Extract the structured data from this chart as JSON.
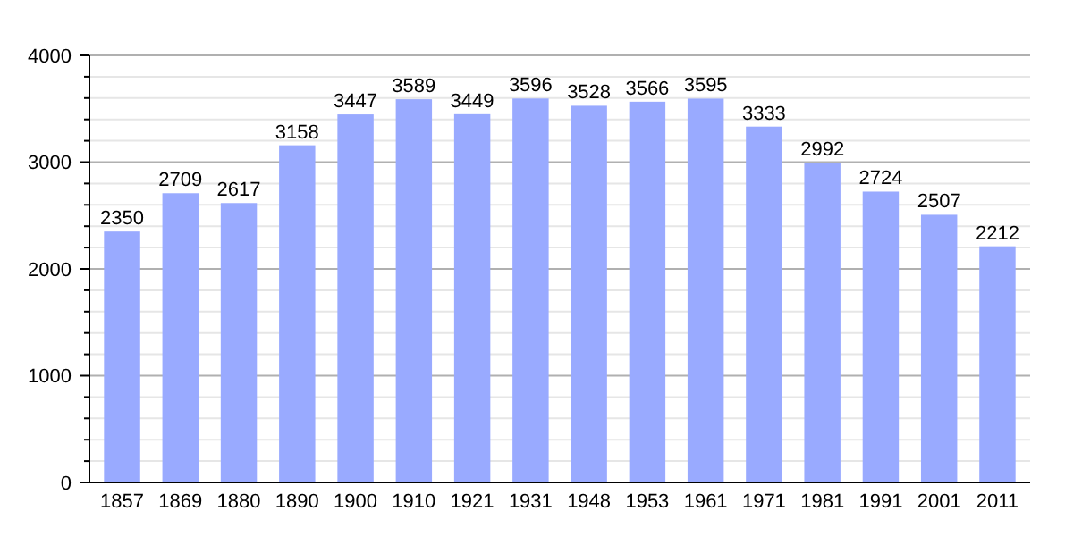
{
  "chart_data": {
    "type": "bar",
    "categories": [
      "1857",
      "1869",
      "1880",
      "1890",
      "1900",
      "1910",
      "1921",
      "1931",
      "1948",
      "1953",
      "1961",
      "1971",
      "1981",
      "1991",
      "2001",
      "2011"
    ],
    "values": [
      2350,
      2709,
      2617,
      3158,
      3447,
      3589,
      3449,
      3596,
      3528,
      3566,
      3595,
      3333,
      2992,
      2724,
      2507,
      2212
    ],
    "color": "#99aaff",
    "data_labels": true,
    "grid": "y",
    "ylim": [
      0,
      4000
    ],
    "yticks": [
      0,
      {
        "value": 200,
        "label": null
      },
      {
        "value": 400,
        "label": null
      },
      {
        "value": 600,
        "label": null
      },
      {
        "value": 800,
        "label": null
      },
      1000,
      {
        "value": 1200,
        "label": null
      },
      {
        "value": 1400,
        "label": null
      },
      {
        "value": 1600,
        "label": null
      },
      {
        "value": 1800,
        "label": null
      },
      2000,
      {
        "value": 2200,
        "label": null
      },
      {
        "value": 2400,
        "label": null
      },
      {
        "value": 2600,
        "label": null
      },
      {
        "value": 2800,
        "label": null
      },
      3000,
      {
        "value": 3200,
        "label": null
      },
      {
        "value": 3400,
        "label": null
      },
      {
        "value": 3600,
        "label": null
      },
      {
        "value": 3800,
        "label": null
      },
      4000
    ]
  }
}
